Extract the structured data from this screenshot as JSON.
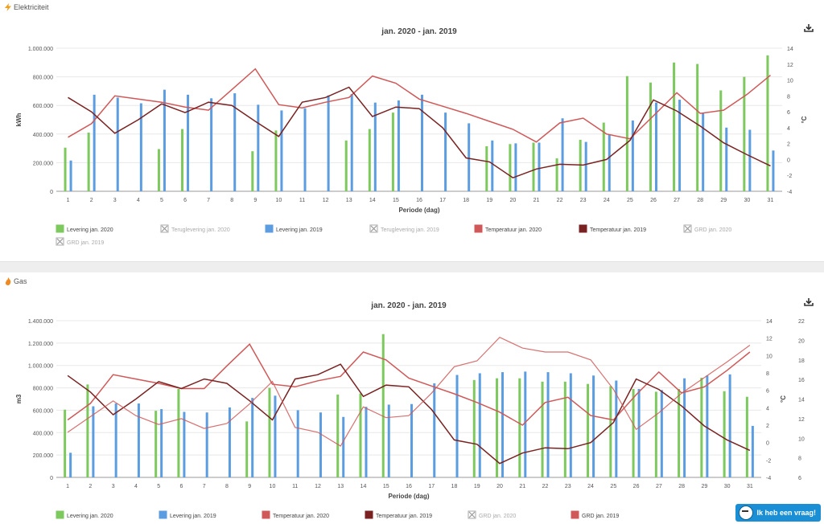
{
  "panels": [
    {
      "section_label": "Elektriciteit",
      "section_icon": "lightning-icon",
      "title": "jan. 2020 - jan. 2019",
      "ylabel_left": "kWh",
      "ylabel_right": "°C",
      "xlabel": "Periode (dag)"
    },
    {
      "section_label": "Gas",
      "section_icon": "flame-icon",
      "title": "jan. 2020 - jan. 2019",
      "ylabel_left": "m3",
      "ylabel_right": "°C",
      "xlabel": "Periode (dag)"
    }
  ],
  "help_button": "Ik heb een vraag!",
  "colors": {
    "green": "#7dc95e",
    "blue": "#5b9de0",
    "red": "#d05858",
    "darkred": "#7a2222",
    "grid": "#e8e8e8"
  },
  "chart_data": [
    {
      "type": "bar",
      "title": "jan. 2020 - jan. 2019",
      "xlabel": "Periode (dag)",
      "ylabel": "kWh",
      "y2label": "°C",
      "categories": [
        "1",
        "2",
        "3",
        "4",
        "5",
        "6",
        "7",
        "8",
        "9",
        "10",
        "11",
        "12",
        "13",
        "14",
        "15",
        "16",
        "17",
        "18",
        "19",
        "20",
        "21",
        "22",
        "23",
        "24",
        "25",
        "26",
        "27",
        "28",
        "29",
        "30",
        "31"
      ],
      "ylim": [
        0,
        1000000
      ],
      "yticks": [
        "0",
        "200.000",
        "400.000",
        "600.000",
        "800.000",
        "1.000.000"
      ],
      "y2lim": [
        -4,
        14
      ],
      "y2ticks": [
        "-4",
        "-2",
        "0",
        "2",
        "4",
        "6",
        "8",
        "10",
        "12",
        "14"
      ],
      "grid": true,
      "bar_series": [
        {
          "name": "Levering jan. 2020",
          "color": "#7dc95e",
          "values": [
            305000,
            410000,
            0,
            0,
            295000,
            435000,
            0,
            0,
            280000,
            425000,
            0,
            0,
            355000,
            435000,
            550000,
            0,
            0,
            0,
            315000,
            330000,
            340000,
            230000,
            360000,
            480000,
            805000,
            760000,
            900000,
            890000,
            705000,
            800000,
            950000
          ]
        },
        {
          "name": "Levering jan. 2019",
          "color": "#5b9de0",
          "values": [
            215000,
            675000,
            655000,
            615000,
            710000,
            675000,
            650000,
            685000,
            605000,
            565000,
            580000,
            670000,
            680000,
            620000,
            635000,
            675000,
            550000,
            475000,
            355000,
            335000,
            340000,
            510000,
            345000,
            395000,
            495000,
            620000,
            640000,
            550000,
            445000,
            430000,
            285000
          ]
        }
      ],
      "line_series": [
        {
          "name": "Temperatuur jan. 2020",
          "color": "#d05858",
          "values": [
            2.8,
            4.5,
            8,
            7.6,
            7.2,
            6.6,
            6.2,
            8.8,
            11.4,
            6.9,
            6.5,
            7.2,
            7.8,
            10.5,
            9.6,
            7.6,
            6.7,
            5.8,
            4.8,
            3.8,
            2.2,
            4.6,
            5.2,
            3.2,
            2.6,
            5.5,
            8.4,
            5.8,
            6.2,
            8.2,
            10.6
          ]
        },
        {
          "name": "Temperatuur jan. 2019",
          "color": "#7a2222",
          "values": [
            7.8,
            6,
            3.3,
            5,
            7,
            5.9,
            7.2,
            6.8,
            4.8,
            2.9,
            7.2,
            7.8,
            9.1,
            5.4,
            6.6,
            6.4,
            4,
            0.2,
            -0.3,
            -2.3,
            -1.2,
            -0.6,
            -0.7,
            0,
            2.4,
            7.5,
            6.1,
            4.2,
            2.1,
            0.6,
            -0.8
          ]
        }
      ],
      "legend": [
        {
          "label": "Levering jan. 2020",
          "color": "#7dc95e",
          "active": true
        },
        {
          "label": "Teruglevering jan. 2020",
          "color": "#bbbbbb",
          "active": false
        },
        {
          "label": "Levering jan. 2019",
          "color": "#5b9de0",
          "active": true
        },
        {
          "label": "Teruglevering jan. 2019",
          "color": "#bbbbbb",
          "active": false
        },
        {
          "label": "Temperatuur jan. 2020",
          "color": "#d05858",
          "active": true
        },
        {
          "label": "Temperatuur jan. 2019",
          "color": "#7a2222",
          "active": true
        },
        {
          "label": "GRD jan. 2020",
          "color": "#bbbbbb",
          "active": false
        },
        {
          "label": "GRD jan. 2019",
          "color": "#bbbbbb",
          "active": false
        }
      ],
      "legend_position": "bottom"
    },
    {
      "type": "bar",
      "title": "jan. 2020 - jan. 2019",
      "xlabel": "Periode (dag)",
      "ylabel": "m3",
      "y2label": "°C",
      "categories": [
        "1",
        "2",
        "3",
        "4",
        "5",
        "6",
        "7",
        "8",
        "9",
        "10",
        "11",
        "12",
        "13",
        "14",
        "15",
        "16",
        "17",
        "18",
        "19",
        "20",
        "21",
        "22",
        "23",
        "24",
        "25",
        "26",
        "27",
        "28",
        "29",
        "30",
        "31"
      ],
      "ylim": [
        0,
        1400000
      ],
      "yticks": [
        "0",
        "200.000",
        "400.000",
        "600.000",
        "800.000",
        "1.000.000",
        "1.200.000",
        "1.400.000"
      ],
      "y2lim": [
        -4,
        14
      ],
      "y2ticks": [
        "-4",
        "-2",
        "0",
        "2",
        "4",
        "6",
        "8",
        "10",
        "12",
        "14"
      ],
      "y3lim": [
        6,
        22
      ],
      "y3ticks": [
        "6",
        "8",
        "10",
        "12",
        "14",
        "16",
        "18",
        "20",
        "22"
      ],
      "grid": true,
      "bar_series": [
        {
          "name": "Levering jan. 2020",
          "color": "#7dc95e",
          "values": [
            605000,
            830000,
            0,
            0,
            595000,
            790000,
            0,
            0,
            500000,
            800000,
            0,
            0,
            740000,
            750000,
            1280000,
            0,
            0,
            0,
            870000,
            885000,
            885000,
            855000,
            855000,
            835000,
            815000,
            790000,
            765000,
            790000,
            890000,
            770000,
            720000
          ]
        },
        {
          "name": "Levering jan. 2019",
          "color": "#5b9de0",
          "values": [
            220000,
            635000,
            660000,
            660000,
            610000,
            585000,
            580000,
            625000,
            710000,
            730000,
            600000,
            580000,
            540000,
            630000,
            650000,
            655000,
            840000,
            915000,
            930000,
            940000,
            945000,
            940000,
            930000,
            910000,
            865000,
            790000,
            780000,
            885000,
            910000,
            920000,
            460000
          ]
        }
      ],
      "line_series": [
        {
          "name": "Temperatuur jan. 2020",
          "color": "#d05858",
          "values": [
            2.6,
            4.5,
            7.8,
            7.3,
            6.8,
            6.2,
            6.2,
            8.8,
            11.3,
            6.7,
            6.4,
            7.1,
            7.6,
            10.4,
            9.5,
            7.4,
            6.5,
            5.6,
            4.6,
            3.5,
            2,
            4.6,
            5.2,
            3.1,
            2.6,
            5.5,
            8.1,
            5.7,
            6.4,
            8.3,
            10.4
          ]
        },
        {
          "name": "Temperatuur jan. 2019",
          "color": "#7a2222",
          "values": [
            7.7,
            5.8,
            3.2,
            5,
            7,
            6.2,
            7.3,
            6.8,
            4.8,
            2.6,
            7.3,
            7.8,
            9,
            5.3,
            6.6,
            6.4,
            3.8,
            0.3,
            -0.2,
            -2.4,
            -1.2,
            -0.6,
            -0.7,
            0,
            2.3,
            7.3,
            6.1,
            4.2,
            1.9,
            0.3,
            -0.9
          ]
        }
      ],
      "grd_series": [
        {
          "name": "GRD jan. 2019",
          "color": "#d05858",
          "axis": "y3",
          "values": [
            10.6,
            12.2,
            13.8,
            12.3,
            11.4,
            12,
            11,
            11.5,
            13.5,
            15.8,
            11.1,
            10.6,
            9.2,
            13.2,
            12.1,
            12.3,
            14.6,
            17.3,
            17.9,
            20.3,
            19.2,
            18.8,
            18.8,
            18,
            15,
            10.9,
            12.6,
            14.6,
            16.2,
            17.8,
            19.5
          ]
        }
      ],
      "legend": [
        {
          "label": "Levering jan. 2020",
          "color": "#7dc95e",
          "active": true
        },
        {
          "label": "Levering jan. 2019",
          "color": "#5b9de0",
          "active": true
        },
        {
          "label": "Temperatuur jan. 2020",
          "color": "#d05858",
          "active": true
        },
        {
          "label": "Temperatuur jan. 2019",
          "color": "#7a2222",
          "active": true
        },
        {
          "label": "GRD jan. 2020",
          "color": "#bbbbbb",
          "active": false
        },
        {
          "label": "GRD jan. 2019",
          "color": "#d05858",
          "active": true
        }
      ],
      "legend_position": "bottom"
    }
  ]
}
